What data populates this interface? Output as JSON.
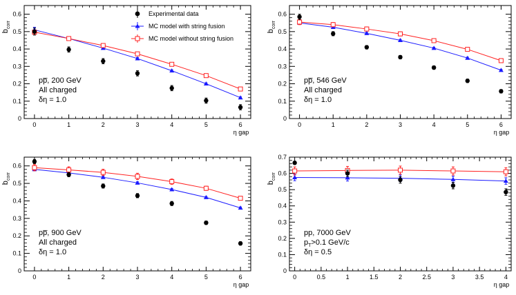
{
  "legend": {
    "experimental": "Experimental data",
    "string_fusion": "MC model with string fusion",
    "no_string_fusion": "MC model without string fusion"
  },
  "colors": {
    "experimental": "#000000",
    "string_fusion": "#1a1aff",
    "no_string_fusion": "#ff2020"
  },
  "chart_data": [
    {
      "type": "scatter",
      "xlabel": "η gap",
      "ylabel": "b",
      "ylabel_sub": "corr",
      "xlim": [
        -0.3,
        6.3
      ],
      "ylim": [
        0,
        0.65
      ],
      "xticks": [
        0,
        1,
        2,
        3,
        4,
        5,
        6
      ],
      "yticks": [
        0,
        0.1,
        0.2,
        0.3,
        0.4,
        0.5,
        0.6
      ],
      "info": [
        "pp̅, 200 GeV",
        "All charged",
        "δη = 1.0"
      ],
      "show_legend": true,
      "legend_placement": "top-right",
      "series": [
        {
          "key": "experimental",
          "x": [
            0,
            1,
            2,
            3,
            4,
            5,
            6
          ],
          "y": [
            0.5,
            0.397,
            0.33,
            0.26,
            0.175,
            0.103,
            0.065
          ],
          "err": [
            0.02,
            0.015,
            0.015,
            0.015,
            0.015,
            0.015,
            0.015
          ]
        },
        {
          "key": "string_fusion",
          "x": [
            0,
            1,
            2,
            3,
            4,
            5,
            6
          ],
          "y": [
            0.51,
            0.46,
            0.405,
            0.345,
            0.275,
            0.2,
            0.12
          ],
          "err": [
            0.015,
            0.008,
            0.006,
            0.006,
            0.005,
            0.005,
            0.005
          ]
        },
        {
          "key": "no_string_fusion",
          "x": [
            0,
            1,
            2,
            3,
            4,
            5,
            6
          ],
          "y": [
            0.497,
            0.46,
            0.42,
            0.372,
            0.312,
            0.247,
            0.17
          ],
          "err": [
            0.01,
            0.008,
            0.006,
            0.006,
            0.005,
            0.005,
            0.005
          ]
        }
      ]
    },
    {
      "type": "scatter",
      "xlabel": "η gap",
      "ylabel": "b",
      "ylabel_sub": "corr",
      "xlim": [
        -0.3,
        6.3
      ],
      "ylim": [
        0,
        0.65
      ],
      "xticks": [
        0,
        1,
        2,
        3,
        4,
        5,
        6
      ],
      "yticks": [
        0,
        0.1,
        0.2,
        0.3,
        0.4,
        0.5,
        0.6
      ],
      "info": [
        "pp̅, 546 GeV",
        "All charged",
        "δη = 1.0"
      ],
      "show_legend": false,
      "series": [
        {
          "key": "experimental",
          "x": [
            0,
            1,
            2,
            3,
            4,
            5,
            6
          ],
          "y": [
            0.585,
            0.488,
            0.41,
            0.353,
            0.293,
            0.217,
            0.157
          ],
          "err": [
            0.015,
            0.012,
            0.01,
            0.01,
            0.01,
            0.01,
            0.01
          ]
        },
        {
          "key": "string_fusion",
          "x": [
            0,
            1,
            2,
            3,
            4,
            5,
            6
          ],
          "y": [
            0.55,
            0.525,
            0.49,
            0.45,
            0.405,
            0.348,
            0.278
          ],
          "err": [
            0.008,
            0.006,
            0.006,
            0.005,
            0.005,
            0.005,
            0.005
          ]
        },
        {
          "key": "no_string_fusion",
          "x": [
            0,
            1,
            2,
            3,
            4,
            5,
            6
          ],
          "y": [
            0.555,
            0.54,
            0.515,
            0.487,
            0.448,
            0.398,
            0.333
          ],
          "err": [
            0.015,
            0.012,
            0.012,
            0.012,
            0.01,
            0.008,
            0.006
          ]
        }
      ]
    },
    {
      "type": "scatter",
      "xlabel": "η gap",
      "ylabel": "b",
      "ylabel_sub": "corr",
      "xlim": [
        -0.3,
        6.3
      ],
      "ylim": [
        0,
        0.65
      ],
      "xticks": [
        0,
        1,
        2,
        3,
        4,
        5,
        6
      ],
      "yticks": [
        0,
        0.1,
        0.2,
        0.3,
        0.4,
        0.5,
        0.6
      ],
      "info": [
        "pp̅, 900 GeV",
        "All charged",
        "δη = 1.0"
      ],
      "show_legend": false,
      "series": [
        {
          "key": "experimental",
          "x": [
            0,
            1,
            2,
            3,
            4,
            5,
            6
          ],
          "y": [
            0.625,
            0.55,
            0.485,
            0.43,
            0.385,
            0.275,
            0.157
          ],
          "err": [
            0.012,
            0.012,
            0.012,
            0.012,
            0.012,
            0.01,
            0.01
          ]
        },
        {
          "key": "string_fusion",
          "x": [
            0,
            1,
            2,
            3,
            4,
            5,
            6
          ],
          "y": [
            0.58,
            0.56,
            0.535,
            0.503,
            0.465,
            0.42,
            0.36
          ],
          "err": [
            0.008,
            0.006,
            0.006,
            0.006,
            0.006,
            0.005,
            0.005
          ]
        },
        {
          "key": "no_string_fusion",
          "x": [
            0,
            1,
            2,
            3,
            4,
            5,
            6
          ],
          "y": [
            0.59,
            0.577,
            0.563,
            0.54,
            0.51,
            0.472,
            0.415
          ],
          "err": [
            0.018,
            0.018,
            0.018,
            0.018,
            0.015,
            0.012,
            0.01
          ]
        }
      ]
    },
    {
      "type": "scatter",
      "xlabel": "η gap",
      "ylabel": "b",
      "ylabel_sub": "corr",
      "xlim": [
        -0.1,
        4.1
      ],
      "ylim": [
        0,
        0.7
      ],
      "xticks": [
        0,
        0.5,
        1,
        1.5,
        2,
        2.5,
        3,
        3.5,
        4
      ],
      "yticks": [
        0,
        0.1,
        0.2,
        0.3,
        0.4,
        0.5,
        0.6,
        0.7
      ],
      "info": [
        "pp, 7000 GeV",
        "pT>0.1 GeV/c",
        "δη = 0.5"
      ],
      "show_legend": false,
      "series": [
        {
          "key": "experimental",
          "x": [
            0,
            1,
            2,
            3,
            4
          ],
          "y": [
            0.665,
            0.6,
            0.56,
            0.525,
            0.485
          ],
          "err": [
            0.01,
            0.02,
            0.02,
            0.02,
            0.02
          ]
        },
        {
          "key": "string_fusion",
          "x": [
            0,
            1,
            2,
            3,
            4
          ],
          "y": [
            0.575,
            0.573,
            0.57,
            0.563,
            0.553
          ],
          "err": [
            0.02,
            0.02,
            0.02,
            0.02,
            0.02
          ]
        },
        {
          "key": "no_string_fusion",
          "x": [
            0,
            1,
            2,
            3,
            4
          ],
          "y": [
            0.615,
            0.618,
            0.62,
            0.615,
            0.61
          ],
          "err": [
            0.025,
            0.025,
            0.025,
            0.025,
            0.025
          ]
        }
      ]
    }
  ]
}
